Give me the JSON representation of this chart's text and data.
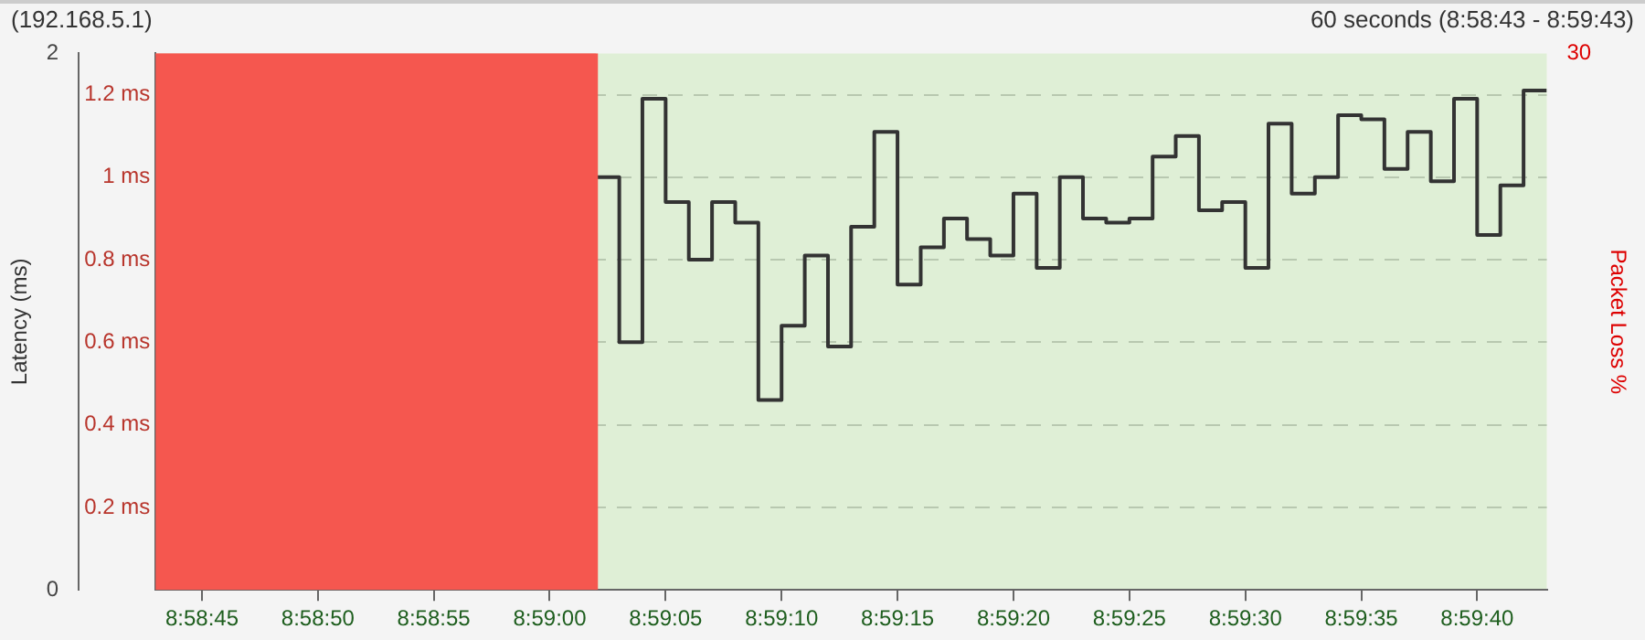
{
  "chart_data": {
    "type": "step",
    "title": "(192.168.5.1)",
    "subtitle": "60 seconds (8:58:43 - 8:59:43)",
    "ylabel": "Latency (ms)",
    "y2label": "Packet Loss %",
    "xlim": [
      8.978611,
      8.995278
    ],
    "xticks": [
      {
        "value": 8.979167,
        "label": "8:58:45"
      },
      {
        "value": 8.980556,
        "label": "8:58:50"
      },
      {
        "value": 8.981944,
        "label": "8:58:55"
      },
      {
        "value": 8.983333,
        "label": "8:59:00"
      },
      {
        "value": 8.984722,
        "label": "8:59:05"
      },
      {
        "value": 8.986111,
        "label": "8:59:10"
      },
      {
        "value": 8.9875,
        "label": "8:59:15"
      },
      {
        "value": 8.988889,
        "label": "8:59:20"
      },
      {
        "value": 8.990278,
        "label": "8:59:25"
      },
      {
        "value": 8.991667,
        "label": "8:59:30"
      },
      {
        "value": 8.993056,
        "label": "8:59:35"
      },
      {
        "value": 8.994444,
        "label": "8:59:40"
      }
    ],
    "ylim": [
      0,
      1.3
    ],
    "yticks": [
      {
        "value": 0.2,
        "label": "0.2 ms"
      },
      {
        "value": 0.4,
        "label": "0.4 ms"
      },
      {
        "value": 0.6,
        "label": "0.6 ms"
      },
      {
        "value": 0.8,
        "label": "0.8 ms"
      },
      {
        "value": 1,
        "label": "1 ms"
      },
      {
        "value": 1.2,
        "label": "1.2 ms"
      }
    ],
    "y3lim": [
      0,
      2
    ],
    "y3ticks": [
      0,
      2
    ],
    "y2lim": [
      0,
      30
    ],
    "y2ticks": [
      30
    ],
    "grid": "y",
    "legend": false,
    "bands": [
      {
        "axis": "x",
        "from": 8.978611,
        "to": 8.995278,
        "color": "#dfefd6"
      }
    ],
    "series": [
      {
        "type": "area",
        "axis": "y2",
        "color": "#f5574f",
        "x": [
          8.978611,
          8.983889
        ],
        "values": [
          30,
          0
        ]
      },
      {
        "color": "#333333",
        "x": [
          8.983889,
          8.984167,
          8.984444,
          8.984722,
          8.985,
          8.985278,
          8.985556,
          8.985833,
          8.986111,
          8.986389,
          8.986667,
          8.986944,
          8.987222,
          8.9875,
          8.987778,
          8.988056,
          8.988333,
          8.988611,
          8.988889,
          8.989167,
          8.989444,
          8.989722,
          8.99,
          8.990278,
          8.990556,
          8.990833,
          8.991111,
          8.991389,
          8.991667,
          8.991944,
          8.992222,
          8.9925,
          8.992778,
          8.993056,
          8.993333,
          8.993611,
          8.993889,
          8.994167,
          8.994444,
          8.994722,
          8.995,
          8.995278
        ],
        "values": [
          1.0,
          0.6,
          1.19,
          0.94,
          0.8,
          0.94,
          0.89,
          0.46,
          0.64,
          0.81,
          0.59,
          0.88,
          1.11,
          0.74,
          0.83,
          0.9,
          0.85,
          0.81,
          0.96,
          0.78,
          1.0,
          0.9,
          0.89,
          0.9,
          1.05,
          1.1,
          0.92,
          0.94,
          0.78,
          1.13,
          0.96,
          1.0,
          1.15,
          1.14,
          1.02,
          1.11,
          0.99,
          1.19,
          0.86,
          0.98,
          1.21,
          1.21
        ]
      }
    ]
  }
}
